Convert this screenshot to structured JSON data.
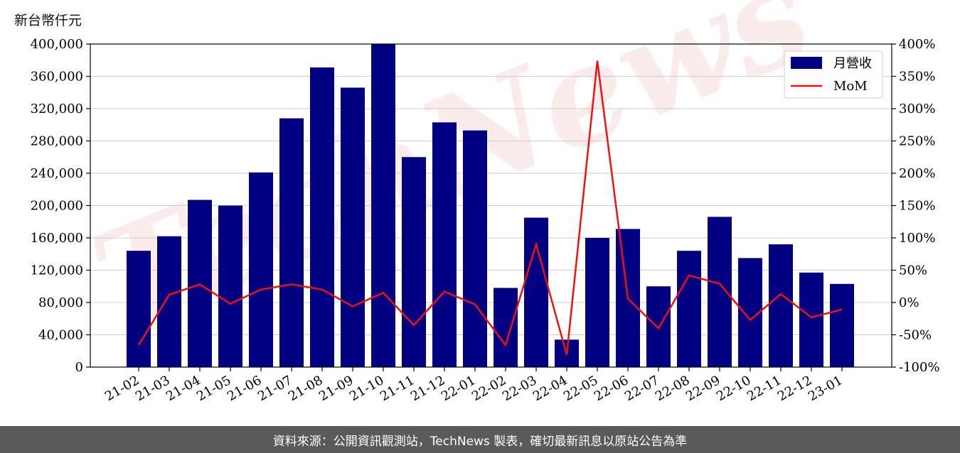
{
  "unit_label": "新台幣仟元",
  "footer_text": "資料來源：公開資訊觀測站，TechNews 製表，確切最新訊息以原站公告為準",
  "watermark_text": "TechNews",
  "chart_data": {
    "type": "bar",
    "categories": [
      "21-02",
      "21-03",
      "21-04",
      "21-05",
      "21-06",
      "21-07",
      "21-08",
      "21-09",
      "21-10",
      "21-11",
      "21-12",
      "22-01",
      "22-02",
      "22-03",
      "22-04",
      "22-05",
      "22-06",
      "22-07",
      "22-08",
      "22-09",
      "22-10",
      "22-11",
      "22-12",
      "23-01"
    ],
    "series": [
      {
        "name": "月營收",
        "type": "bar",
        "axis": "left",
        "color": "#000080",
        "values": [
          144000,
          162000,
          207000,
          200000,
          241000,
          308000,
          371000,
          346000,
          400000,
          260000,
          303000,
          293000,
          98000,
          185000,
          34000,
          160000,
          171000,
          100000,
          144000,
          186000,
          135000,
          152000,
          117000,
          103000
        ]
      },
      {
        "name": "MoM",
        "type": "line",
        "axis": "right",
        "color": "#ee1111",
        "values": [
          -66,
          12,
          28,
          -2,
          20,
          28,
          20,
          -6,
          15,
          -35,
          17,
          -3,
          -66,
          90,
          -81,
          374,
          6,
          -40,
          42,
          29,
          -27,
          13,
          -23,
          -11
        ]
      }
    ],
    "y_left": {
      "min": 0,
      "max": 400000,
      "ticks": [
        "0",
        "40,000",
        "80,000",
        "120,000",
        "160,000",
        "200,000",
        "240,000",
        "280,000",
        "320,000",
        "360,000",
        "400,000"
      ]
    },
    "y_right": {
      "min": -100,
      "max": 400,
      "ticks": [
        "-100%",
        "-50%",
        "0%",
        "50%",
        "100%",
        "150%",
        "200%",
        "250%",
        "300%",
        "350%",
        "400%"
      ]
    },
    "grid": true,
    "legend_position": "top-right"
  }
}
